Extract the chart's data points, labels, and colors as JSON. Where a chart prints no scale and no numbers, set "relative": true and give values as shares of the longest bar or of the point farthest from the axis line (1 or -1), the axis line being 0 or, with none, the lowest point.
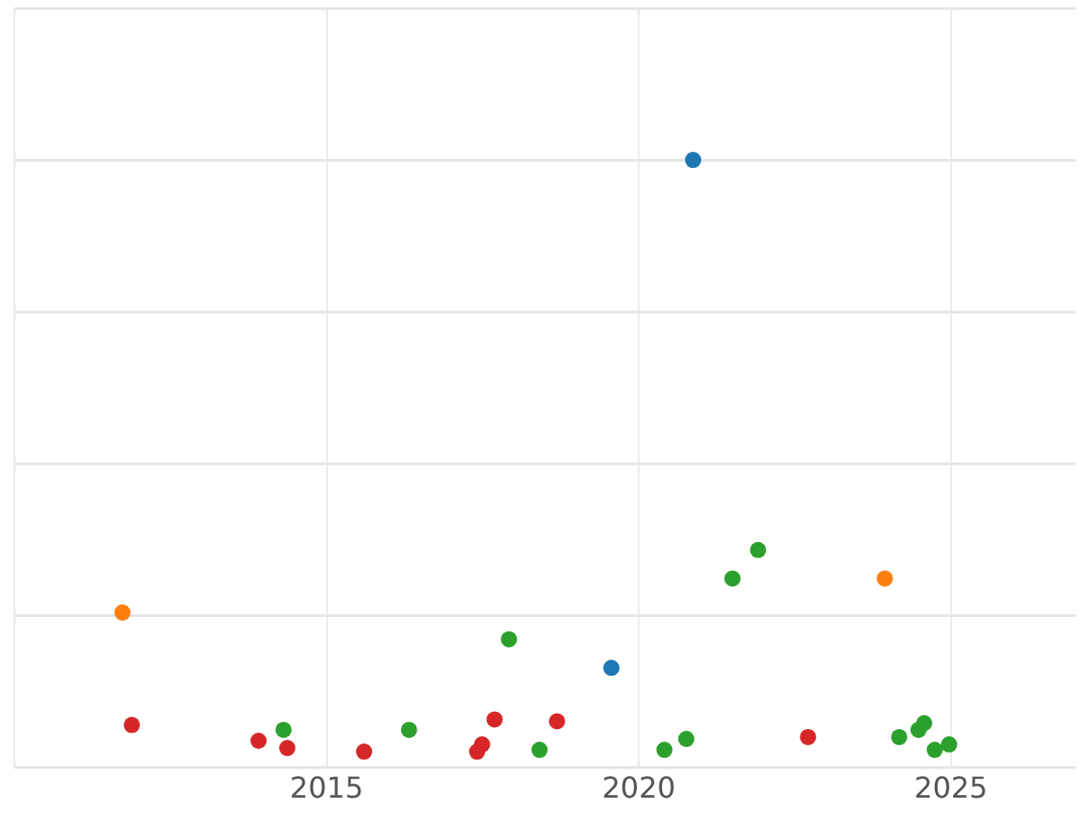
{
  "chart_data": {
    "type": "scatter",
    "relative": true,
    "xlim": [
      2010,
      2027
    ],
    "xticks": [
      {
        "value": 2010,
        "label": null
      },
      2015,
      2020,
      2025
    ],
    "grid": true,
    "legend": false,
    "marker": "circle",
    "series": [
      {
        "color": "#1f77b4",
        "x": [
          2020.87,
          2019.56
        ],
        "values": [
          1.0,
          0.164
        ]
      },
      {
        "color": "#ff7f0e",
        "x": [
          2011.73,
          2023.94
        ],
        "values": [
          0.255,
          0.311
        ]
      },
      {
        "color": "#2ca02c",
        "x": [
          2021.91,
          2021.5,
          2017.92,
          2014.31,
          2016.32,
          2018.41,
          2020.41,
          2020.76,
          2024.17,
          2024.48,
          2024.57,
          2024.74,
          2024.97
        ],
        "values": [
          0.358,
          0.311,
          0.211,
          0.062,
          0.062,
          0.029,
          0.029,
          0.047,
          0.05,
          0.062,
          0.073,
          0.029,
          0.038
        ]
      },
      {
        "color": "#d62728",
        "x": [
          2011.88,
          2013.91,
          2014.37,
          2015.6,
          2017.41,
          2017.49,
          2017.69,
          2018.69,
          2022.71
        ],
        "values": [
          0.07,
          0.044,
          0.032,
          0.026,
          0.026,
          0.038,
          0.079,
          0.076,
          0.05
        ]
      }
    ]
  }
}
